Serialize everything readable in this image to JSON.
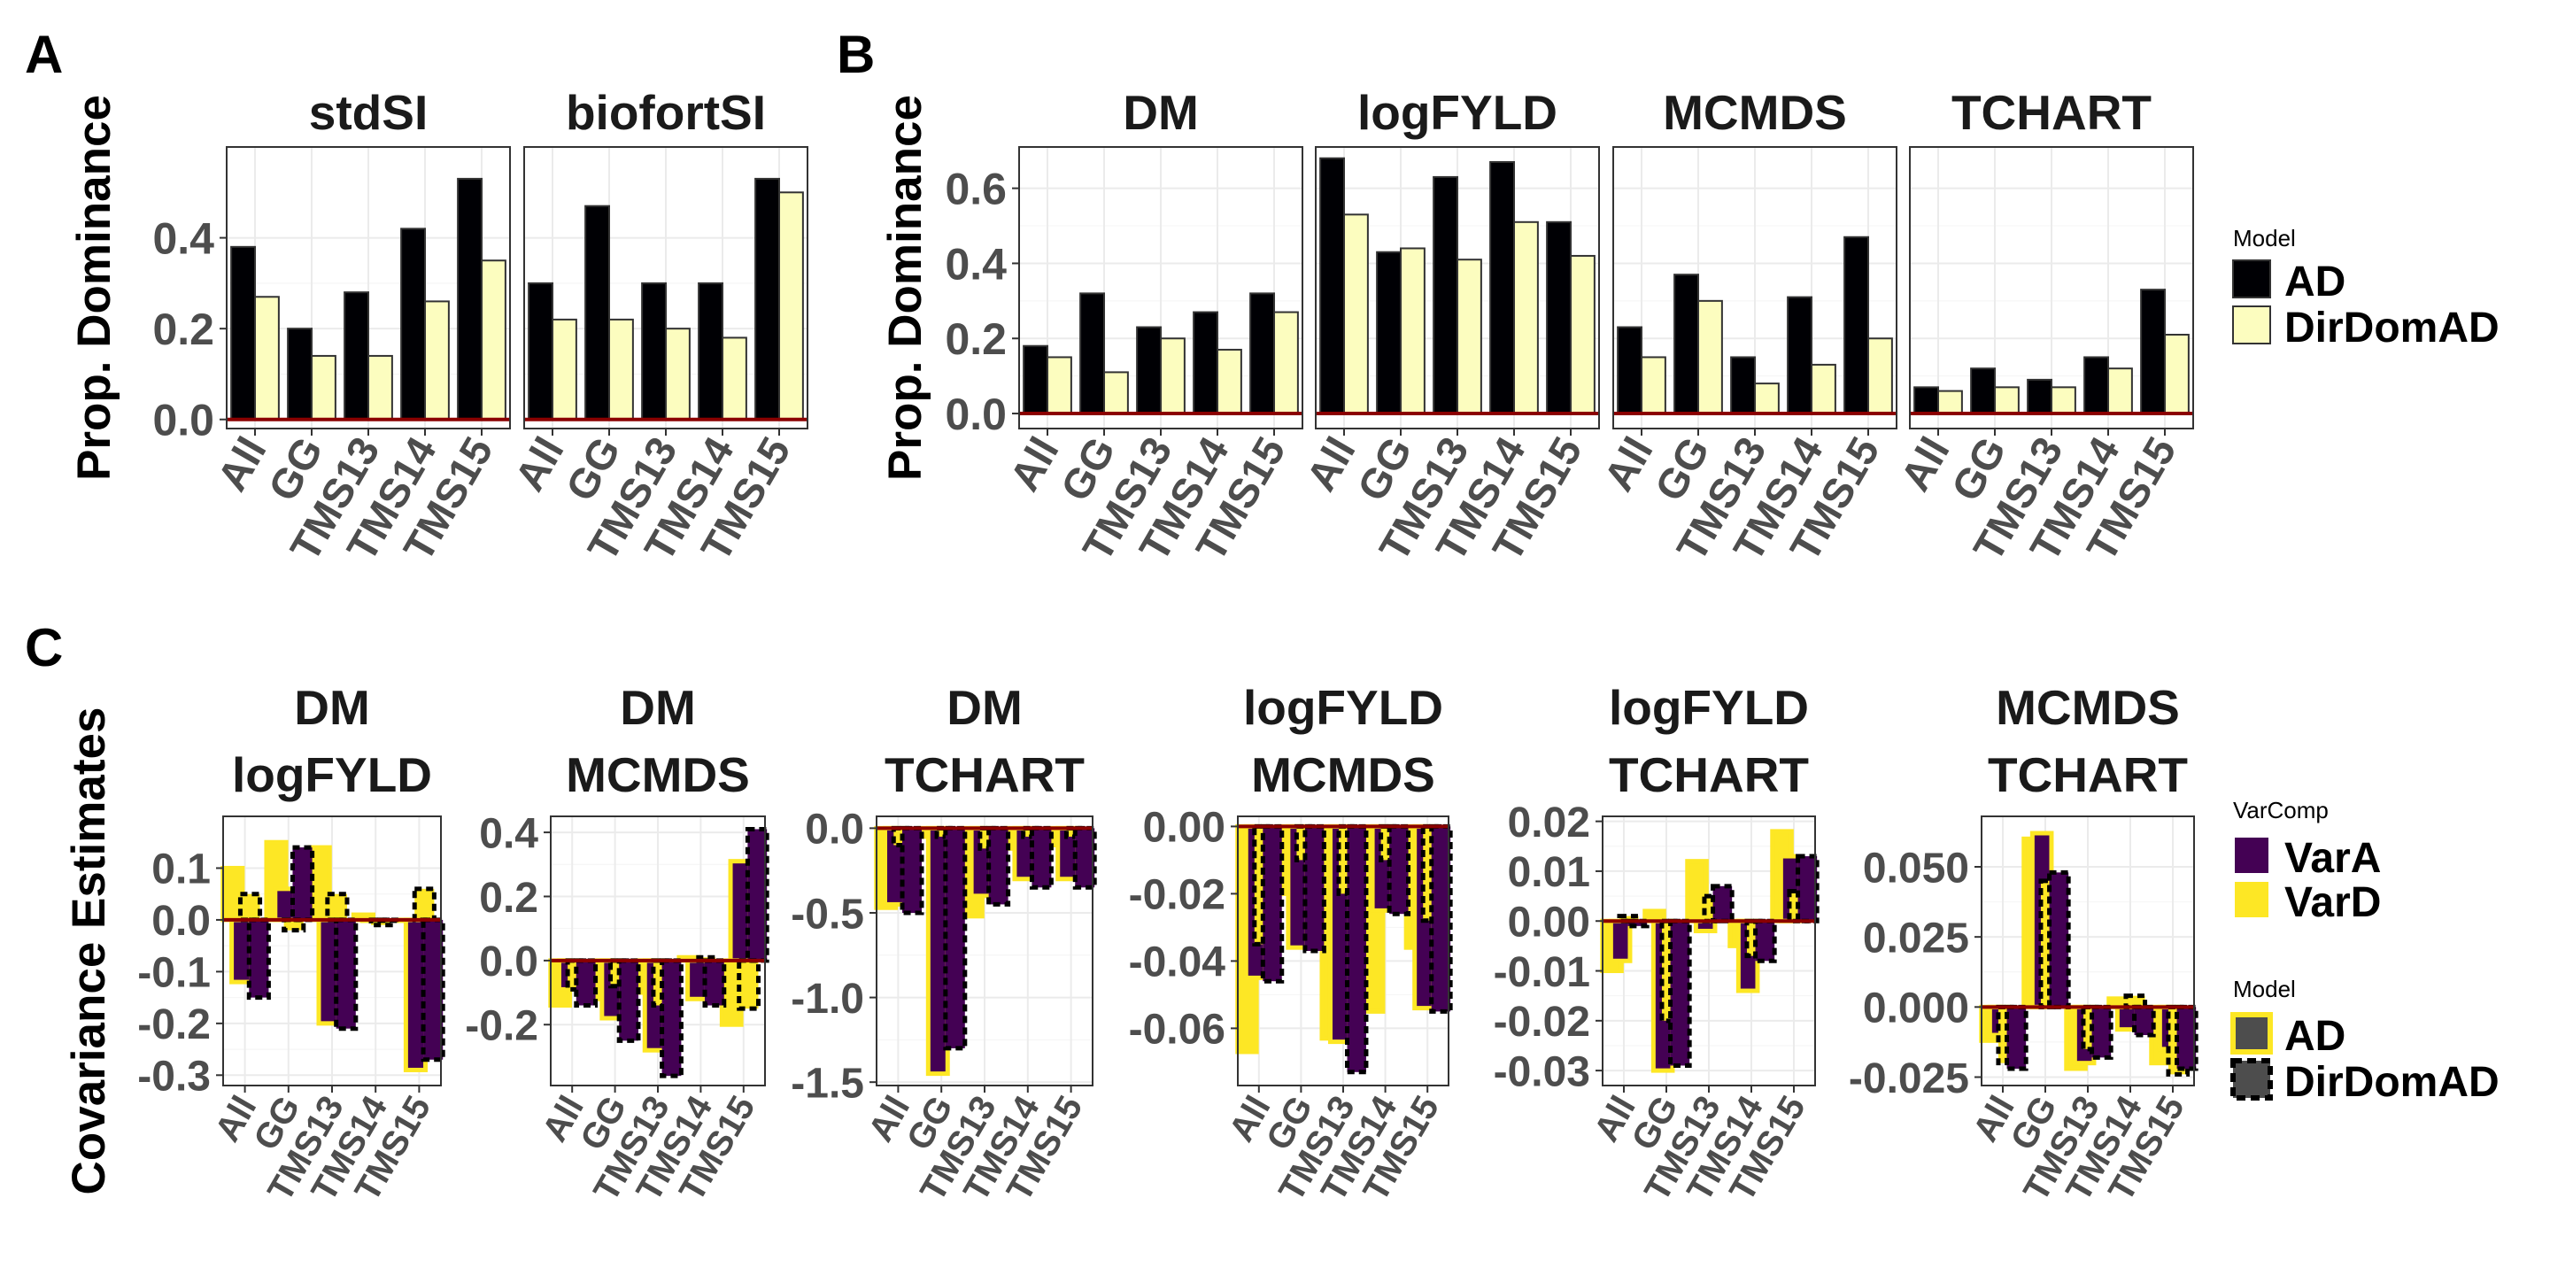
{
  "panels": {
    "A": "A",
    "B": "B",
    "C": "C"
  },
  "colors": {
    "AD": "#000004",
    "DirDomAD": "#fcfdbf",
    "VarA": "#440154",
    "VarD": "#fde725",
    "zero_line": "#8b0000",
    "grid": "#ebebeb"
  },
  "legends": {
    "model_ab": {
      "title": "Model",
      "items": [
        "AD",
        "DirDomAD"
      ]
    },
    "varcomp": {
      "title": "VarComp",
      "items": [
        "VarA",
        "VarD"
      ]
    },
    "model_c": {
      "title": "Model",
      "items": [
        "AD",
        "DirDomAD"
      ]
    }
  },
  "chart_data": [
    {
      "id": "A",
      "type": "bar",
      "ylabel": "Prop. Dominance",
      "categories": [
        "All",
        "GG",
        "TMS13",
        "TMS14",
        "TMS15"
      ],
      "ylim": [
        -0.02,
        0.6
      ],
      "yticks": [
        "0.0",
        "0.2",
        "0.4"
      ],
      "ytick_values": [
        0,
        0.2,
        0.4
      ],
      "facets": [
        {
          "title": "stdSI",
          "series": [
            {
              "name": "AD",
              "values": [
                0.38,
                0.2,
                0.28,
                0.42,
                0.53
              ]
            },
            {
              "name": "DirDomAD",
              "values": [
                0.27,
                0.14,
                0.14,
                0.26,
                0.35
              ]
            }
          ]
        },
        {
          "title": "biofortSI",
          "series": [
            {
              "name": "AD",
              "values": [
                0.3,
                0.47,
                0.3,
                0.3,
                0.53
              ]
            },
            {
              "name": "DirDomAD",
              "values": [
                0.22,
                0.22,
                0.2,
                0.18,
                0.5
              ]
            }
          ]
        }
      ]
    },
    {
      "id": "B",
      "type": "bar",
      "ylabel": "Prop. Dominance",
      "categories": [
        "All",
        "GG",
        "TMS13",
        "TMS14",
        "TMS15"
      ],
      "ylim": [
        -0.04,
        0.71
      ],
      "yticks": [
        "0.0",
        "0.2",
        "0.4",
        "0.6"
      ],
      "ytick_values": [
        0,
        0.2,
        0.4,
        0.6
      ],
      "facets": [
        {
          "title": "DM",
          "series": [
            {
              "name": "AD",
              "values": [
                0.18,
                0.32,
                0.23,
                0.27,
                0.32
              ]
            },
            {
              "name": "DirDomAD",
              "values": [
                0.15,
                0.11,
                0.2,
                0.17,
                0.27
              ]
            }
          ]
        },
        {
          "title": "logFYLD",
          "series": [
            {
              "name": "AD",
              "values": [
                0.68,
                0.43,
                0.63,
                0.67,
                0.51
              ]
            },
            {
              "name": "DirDomAD",
              "values": [
                0.53,
                0.44,
                0.41,
                0.51,
                0.42
              ]
            }
          ]
        },
        {
          "title": "MCMDS",
          "series": [
            {
              "name": "AD",
              "values": [
                0.23,
                0.37,
                0.15,
                0.31,
                0.47
              ]
            },
            {
              "name": "DirDomAD",
              "values": [
                0.15,
                0.3,
                0.08,
                0.13,
                0.2
              ]
            }
          ]
        },
        {
          "title": "TCHART",
          "series": [
            {
              "name": "AD",
              "values": [
                0.07,
                0.12,
                0.09,
                0.15,
                0.33
              ]
            },
            {
              "name": "DirDomAD",
              "values": [
                0.06,
                0.07,
                0.07,
                0.12,
                0.21
              ]
            }
          ]
        }
      ]
    },
    {
      "id": "C",
      "type": "bar",
      "ylabel": "Covariance Estimates",
      "categories": [
        "All",
        "GG",
        "TMS13",
        "TMS14",
        "TMS15"
      ],
      "facets": [
        {
          "title1": "DM",
          "title2": "logFYLD",
          "ylim": [
            -0.32,
            0.2
          ],
          "yticks": [
            "-0.3",
            "-0.2",
            "-0.1",
            "0.0",
            "0.1"
          ],
          "ytick_values": [
            -0.3,
            -0.2,
            -0.1,
            0,
            0.1
          ],
          "series": [
            {
              "name": "VarA AD",
              "values": [
                -0.12,
                0.06,
                -0.2,
                0.0,
                -0.29
              ]
            },
            {
              "name": "VarD AD",
              "values": [
                0.1,
                0.15,
                0.14,
                0.01,
                0.0
              ]
            },
            {
              "name": "VarA DirDomAD",
              "values": [
                -0.15,
                0.14,
                -0.21,
                0.0,
                -0.27
              ]
            },
            {
              "name": "VarD DirDomAD",
              "values": [
                0.05,
                -0.02,
                0.05,
                -0.01,
                0.06
              ]
            }
          ]
        },
        {
          "title1": "DM",
          "title2": "MCMDS",
          "ylim": [
            -0.39,
            0.45
          ],
          "yticks": [
            "-0.2",
            "0.0",
            "0.2",
            "0.4"
          ],
          "ytick_values": [
            -0.2,
            0,
            0.2,
            0.4
          ],
          "series": [
            {
              "name": "VarA AD",
              "values": [
                -0.09,
                -0.18,
                -0.28,
                -0.12,
                0.31
              ]
            },
            {
              "name": "VarD AD",
              "values": [
                -0.14,
                -0.12,
                -0.1,
                0.01,
                -0.2
              ]
            },
            {
              "name": "VarA DirDomAD",
              "values": [
                -0.14,
                -0.25,
                -0.36,
                -0.14,
                0.41
              ]
            },
            {
              "name": "VarD DirDomAD",
              "values": [
                -0.09,
                -0.08,
                -0.14,
                0.01,
                -0.15
              ]
            }
          ]
        },
        {
          "title1": "DM",
          "title2": "TCHART",
          "ylim": [
            -1.52,
            0.07
          ],
          "yticks": [
            "-1.5",
            "-1.0",
            "-0.5",
            "0.0"
          ],
          "ytick_values": [
            -1.5,
            -1.0,
            -0.5,
            0
          ],
          "series": [
            {
              "name": "VarA AD",
              "values": [
                -0.45,
                -1.45,
                -0.4,
                -0.3,
                -0.3
              ]
            },
            {
              "name": "VarD AD",
              "values": [
                -0.47,
                -0.05,
                -0.52,
                -0.12,
                -0.1
              ]
            },
            {
              "name": "VarA DirDomAD",
              "values": [
                -0.5,
                -1.3,
                -0.45,
                -0.35,
                -0.35
              ]
            },
            {
              "name": "VarD DirDomAD",
              "values": [
                -0.1,
                -0.05,
                -0.12,
                -0.05,
                -0.05
              ]
            }
          ]
        },
        {
          "title1": "logFYLD",
          "title2": "MCMDS",
          "ylim": [
            -0.077,
            0.003
          ],
          "yticks": [
            "-0.06",
            "-0.04",
            "-0.02",
            "0.00"
          ],
          "ytick_values": [
            -0.06,
            -0.04,
            -0.02,
            0
          ],
          "series": [
            {
              "name": "VarA AD",
              "values": [
                -0.045,
                -0.036,
                -0.064,
                -0.025,
                -0.054
              ]
            },
            {
              "name": "VarD AD",
              "values": [
                -0.067,
                -0.02,
                -0.063,
                -0.055,
                -0.036
              ]
            },
            {
              "name": "VarA DirDomAD",
              "values": [
                -0.046,
                -0.037,
                -0.073,
                -0.026,
                -0.055
              ]
            },
            {
              "name": "VarD DirDomAD",
              "values": [
                -0.035,
                -0.01,
                -0.02,
                -0.01,
                -0.028
              ]
            }
          ]
        },
        {
          "title1": "logFYLD",
          "title2": "TCHART",
          "ylim": [
            -0.033,
            0.021
          ],
          "yticks": [
            "-0.03",
            "-0.02",
            "-0.01",
            "0.00",
            "0.01",
            "0.02"
          ],
          "ytick_values": [
            -0.03,
            -0.02,
            -0.01,
            0,
            0.01,
            0.02
          ],
          "series": [
            {
              "name": "VarA AD",
              "values": [
                -0.008,
                -0.03,
                -0.002,
                -0.014,
                0.013
              ]
            },
            {
              "name": "VarD AD",
              "values": [
                -0.01,
                0.002,
                0.012,
                -0.005,
                0.018
              ]
            },
            {
              "name": "VarA DirDomAD",
              "values": [
                -0.001,
                -0.029,
                0.007,
                -0.008,
                0.013
              ]
            },
            {
              "name": "VarD DirDomAD",
              "values": [
                0.001,
                -0.02,
                0.005,
                -0.007,
                0.006
              ]
            }
          ]
        },
        {
          "title1": "MCMDS",
          "title2": "TCHART",
          "ylim": [
            -0.028,
            0.068
          ],
          "yticks": [
            "-0.025",
            "0.000",
            "0.025",
            "0.050"
          ],
          "ytick_values": [
            -0.025,
            0,
            0.025,
            0.05
          ],
          "series": [
            {
              "name": "VarA AD",
              "values": [
                -0.01,
                0.062,
                -0.02,
                -0.008,
                -0.015
              ]
            },
            {
              "name": "VarD AD",
              "values": [
                -0.012,
                0.06,
                -0.022,
                0.003,
                -0.02
              ]
            },
            {
              "name": "VarA DirDomAD",
              "values": [
                -0.022,
                0.048,
                -0.018,
                -0.01,
                -0.022
              ]
            },
            {
              "name": "VarD DirDomAD",
              "values": [
                -0.02,
                0.045,
                -0.015,
                0.004,
                -0.024
              ]
            }
          ]
        }
      ]
    }
  ]
}
